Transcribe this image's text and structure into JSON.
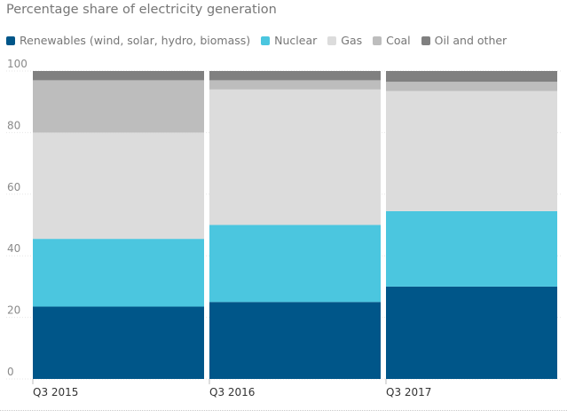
{
  "chart_data": {
    "type": "bar",
    "stacked": true,
    "title": "Percentage share of electricity generation",
    "xlabel": "",
    "ylabel": "",
    "ylim": [
      0,
      100
    ],
    "yticks": [
      "0",
      "20",
      "40",
      "60",
      "80",
      "100"
    ],
    "grid": true,
    "legend_position": "top",
    "categories": [
      "Q3 2015",
      "Q3 2016",
      "Q3 2017"
    ],
    "series": [
      {
        "name": "Renewables (wind, solar, hydro, biomass)",
        "color": "#005689",
        "values": [
          23.5,
          25,
          30
        ]
      },
      {
        "name": "Nuclear",
        "color": "#4bc6df",
        "values": [
          22,
          25,
          24.5
        ]
      },
      {
        "name": "Gas",
        "color": "#dcdcdc",
        "values": [
          34.5,
          44,
          39
        ]
      },
      {
        "name": "Coal",
        "color": "#bdbdbd",
        "values": [
          17,
          3,
          3
        ]
      },
      {
        "name": "Oil and other",
        "color": "#808080",
        "values": [
          3,
          3,
          3.5
        ]
      }
    ]
  }
}
